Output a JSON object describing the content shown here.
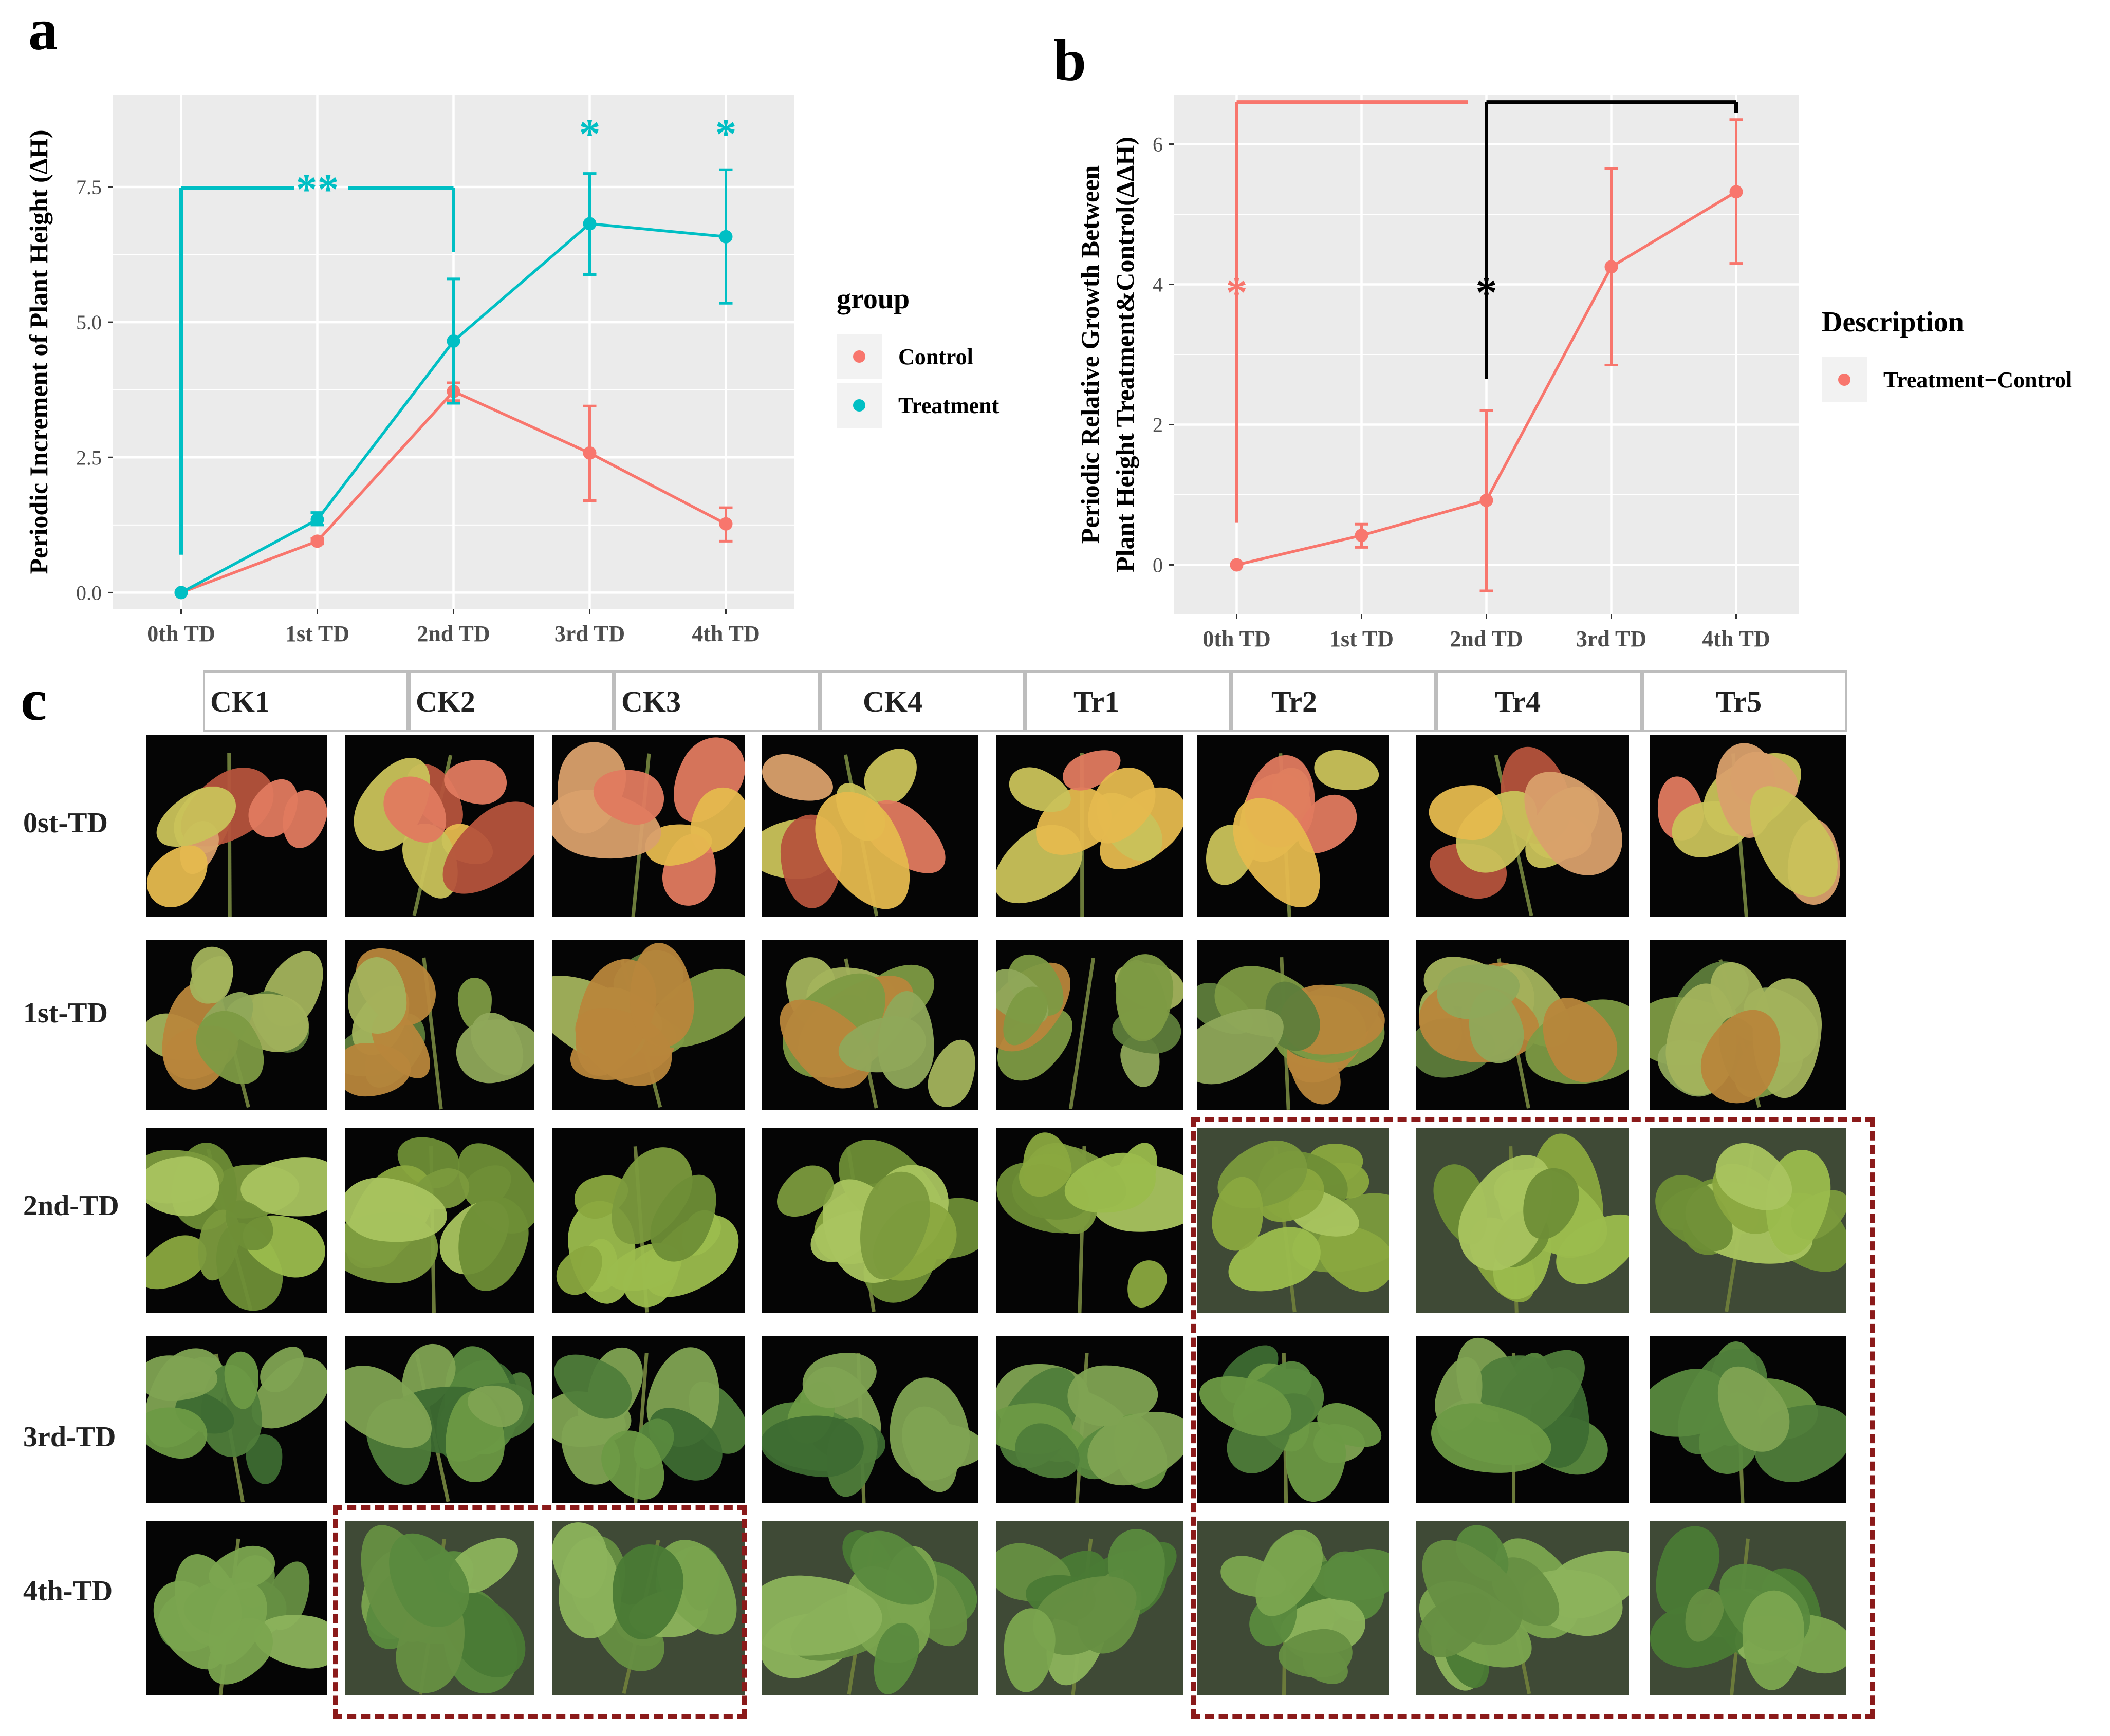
{
  "panels": {
    "a": "a",
    "b": "b",
    "c": "c"
  },
  "chart_data": [
    {
      "id": "a",
      "type": "line",
      "title": "",
      "xlabel": "",
      "ylabel": "Periodic Increment of Plant Height (ΔH)",
      "categories": [
        "0th TD",
        "1st TD",
        "2nd TD",
        "3rd TD",
        "4th TD"
      ],
      "ylim": [
        -0.3,
        9.2
      ],
      "yticks": [
        0.0,
        2.5,
        5.0,
        7.5
      ],
      "ytick_labels": [
        "0.0",
        "2.5",
        "5.0",
        "7.5"
      ],
      "grid": true,
      "legend_title": "group",
      "legend_position": "right",
      "series": [
        {
          "name": "Control",
          "color": "#F8766D",
          "values": [
            0.0,
            0.95,
            3.72,
            2.58,
            1.27
          ],
          "err_low": [
            0.0,
            0.9,
            3.55,
            1.7,
            0.95
          ],
          "err_high": [
            0.0,
            1.0,
            3.88,
            3.45,
            1.57
          ]
        },
        {
          "name": "Treatment",
          "color": "#00BFC4",
          "values": [
            0.0,
            1.35,
            4.65,
            6.82,
            6.58
          ],
          "err_low": [
            0.0,
            1.25,
            3.5,
            5.88,
            5.35
          ],
          "err_high": [
            0.0,
            1.48,
            5.8,
            7.75,
            7.82
          ]
        }
      ],
      "annotations": [
        {
          "text": "**",
          "color": "#00BFC4",
          "x": 1,
          "y": 7.48
        },
        {
          "text": "*",
          "color": "#00BFC4",
          "x": 3,
          "y": 8.5
        },
        {
          "text": "*",
          "color": "#00BFC4",
          "x": 4,
          "y": 8.5
        }
      ],
      "brackets": [
        {
          "color": "#00BFC4",
          "from": 0,
          "to": 2,
          "y": 7.48,
          "left_bottom": 0.7,
          "right_bottom": 6.3,
          "gap_at": 1
        }
      ]
    },
    {
      "id": "b",
      "type": "line",
      "title": "",
      "xlabel": "",
      "ylabel": "Periodic Relative Growth Between Plant Height Treatment&Control(ΔΔH)",
      "ylabel_lines": [
        "Periodic Relative Growth Between",
        "Plant Height Treatment&Control(ΔΔH)"
      ],
      "categories": [
        "0th TD",
        "1st TD",
        "2nd TD",
        "3rd TD",
        "4th TD"
      ],
      "ylim": [
        -0.7,
        6.7
      ],
      "yticks": [
        0,
        2,
        4,
        6
      ],
      "ytick_labels": [
        "0",
        "2",
        "4",
        "6"
      ],
      "grid": true,
      "legend_title": "Description",
      "legend_position": "right",
      "series": [
        {
          "name": "Treatment−Control",
          "color": "#F8766D",
          "values": [
            0.0,
            0.42,
            0.92,
            4.25,
            5.32
          ],
          "err_low": [
            0.0,
            0.25,
            -0.37,
            2.85,
            4.3
          ],
          "err_high": [
            0.0,
            0.58,
            2.2,
            5.65,
            6.35
          ]
        }
      ],
      "annotations": [
        {
          "text": "*",
          "color": "#F8766D",
          "x": 0,
          "y": 3.9
        },
        {
          "text": "*",
          "color": "#000000",
          "x": 2,
          "y": 3.9
        }
      ],
      "brackets": [
        {
          "color": "#F8766D",
          "from": 0,
          "to": 1.85,
          "y": 6.6,
          "left_bottom": 0.6,
          "right_bottom": null,
          "gap_at": null
        },
        {
          "color": "#000000",
          "from": 2,
          "to": 4,
          "y": 6.6,
          "left_bottom": 2.65,
          "right_bottom": 6.45,
          "gap_at": null
        }
      ]
    }
  ],
  "photo_grid": {
    "columns": [
      "CK1",
      "CK2",
      "CK3",
      "CK4",
      "Tr1",
      "Tr2",
      "Tr4",
      "Tr5"
    ],
    "rows": [
      "0st-TD",
      "1st-TD",
      "2nd-TD",
      "3rd-TD",
      "4th-TD"
    ]
  }
}
